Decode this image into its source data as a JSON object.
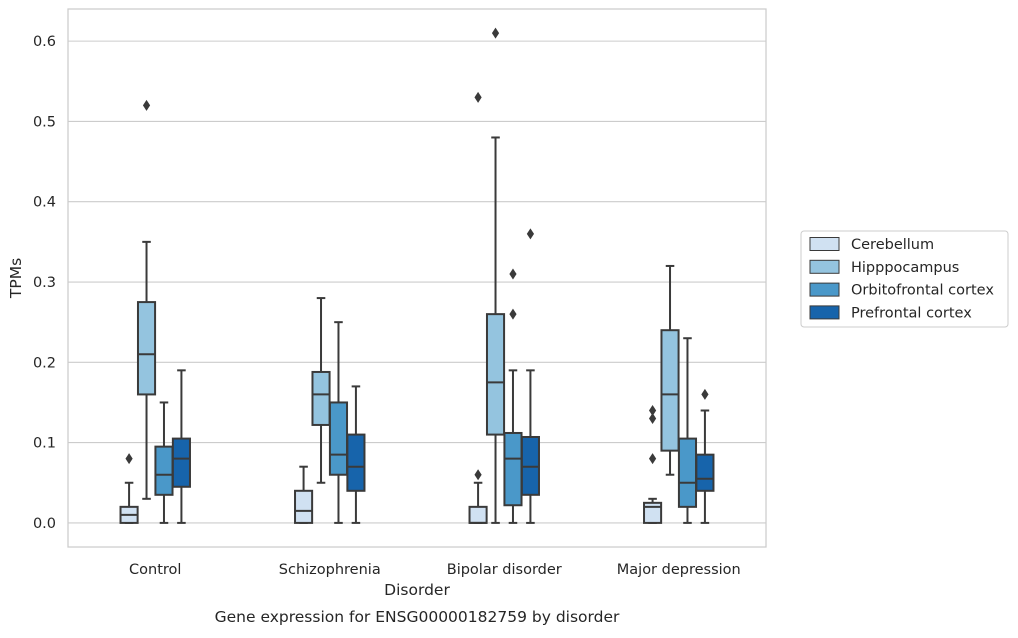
{
  "chart_data": {
    "type": "box",
    "title": "",
    "caption": "Gene expression for ENSG00000182759 by disorder",
    "xlabel": "Disorder",
    "ylabel": "TPMs",
    "ylim": [
      -0.03,
      0.64
    ],
    "yticks": [
      "0.0",
      "0.1",
      "0.2",
      "0.3",
      "0.4",
      "0.5",
      "0.6"
    ],
    "grid": "horizontal",
    "legend_position": "right",
    "categories": [
      "Control",
      "Schizophrenia",
      "Bipolar disorder",
      "Major depression"
    ],
    "series": [
      {
        "name": "Cerebellum",
        "color": "#d0e1f2",
        "boxes": [
          {
            "whislo": 0.0,
            "q1": 0.0,
            "med": 0.01,
            "q3": 0.02,
            "whishi": 0.05,
            "fliers": [
              0.08
            ]
          },
          {
            "whislo": 0.0,
            "q1": 0.0,
            "med": 0.015,
            "q3": 0.04,
            "whishi": 0.07,
            "fliers": []
          },
          {
            "whislo": 0.0,
            "q1": 0.0,
            "med": 0.0,
            "q3": 0.02,
            "whishi": 0.05,
            "fliers": [
              0.06,
              0.53
            ]
          },
          {
            "whislo": 0.0,
            "q1": 0.0,
            "med": 0.02,
            "q3": 0.025,
            "whishi": 0.03,
            "fliers": [
              0.08,
              0.13,
              0.14
            ]
          }
        ]
      },
      {
        "name": "Hipppocampus",
        "color": "#94c4df",
        "boxes": [
          {
            "whislo": 0.03,
            "q1": 0.16,
            "med": 0.21,
            "q3": 0.275,
            "whishi": 0.35,
            "fliers": [
              0.52
            ]
          },
          {
            "whislo": 0.05,
            "q1": 0.122,
            "med": 0.16,
            "q3": 0.188,
            "whishi": 0.28,
            "fliers": []
          },
          {
            "whislo": 0.0,
            "q1": 0.11,
            "med": 0.175,
            "q3": 0.26,
            "whishi": 0.48,
            "fliers": [
              0.61
            ]
          },
          {
            "whislo": 0.06,
            "q1": 0.09,
            "med": 0.16,
            "q3": 0.24,
            "whishi": 0.32,
            "fliers": []
          }
        ]
      },
      {
        "name": "Orbitofrontal cortex",
        "color": "#4a98c9",
        "boxes": [
          {
            "whislo": 0.0,
            "q1": 0.035,
            "med": 0.06,
            "q3": 0.095,
            "whishi": 0.15,
            "fliers": []
          },
          {
            "whislo": 0.0,
            "q1": 0.06,
            "med": 0.085,
            "q3": 0.15,
            "whishi": 0.25,
            "fliers": []
          },
          {
            "whislo": 0.0,
            "q1": 0.022,
            "med": 0.08,
            "q3": 0.112,
            "whishi": 0.19,
            "fliers": [
              0.26,
              0.31
            ]
          },
          {
            "whislo": 0.0,
            "q1": 0.02,
            "med": 0.05,
            "q3": 0.105,
            "whishi": 0.23,
            "fliers": []
          }
        ]
      },
      {
        "name": "Prefrontal cortex",
        "color": "#1764ab",
        "boxes": [
          {
            "whislo": 0.0,
            "q1": 0.045,
            "med": 0.08,
            "q3": 0.105,
            "whishi": 0.19,
            "fliers": []
          },
          {
            "whislo": 0.0,
            "q1": 0.04,
            "med": 0.07,
            "q3": 0.11,
            "whishi": 0.17,
            "fliers": []
          },
          {
            "whislo": 0.0,
            "q1": 0.035,
            "med": 0.07,
            "q3": 0.107,
            "whishi": 0.19,
            "fliers": [
              0.36
            ]
          },
          {
            "whislo": 0.0,
            "q1": 0.04,
            "med": 0.055,
            "q3": 0.085,
            "whishi": 0.14,
            "fliers": [
              0.16
            ]
          }
        ]
      }
    ]
  }
}
